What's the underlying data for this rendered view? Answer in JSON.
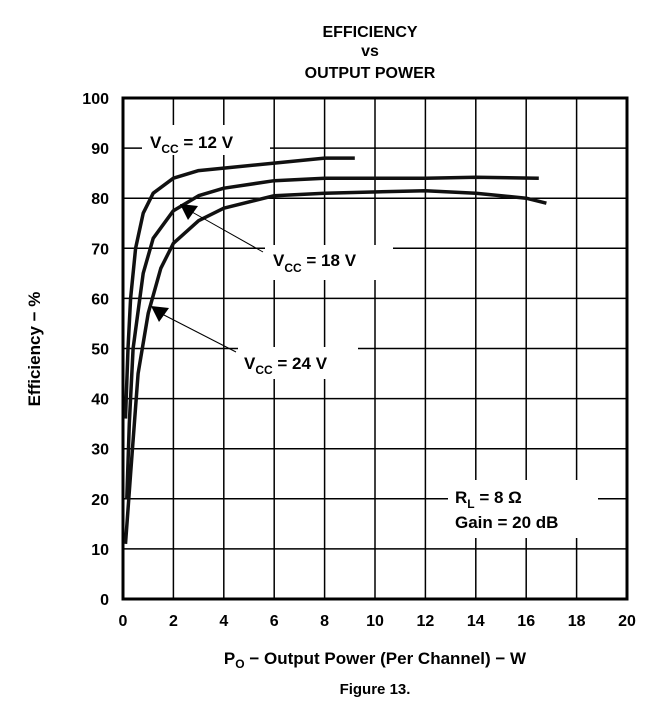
{
  "chart_data": {
    "type": "line",
    "title": [
      "EFFICIENCY",
      "vs",
      "OUTPUT POWER"
    ],
    "xlabel": {
      "main": "P",
      "sub": "O",
      "rest": " − Output Power (Per Channel) − W"
    },
    "ylabel": "Efficiency − %",
    "caption": "Figure 13.",
    "xlim": [
      0,
      20
    ],
    "ylim": [
      0,
      100
    ],
    "xticks": [
      "0",
      "2",
      "4",
      "6",
      "8",
      "10",
      "12",
      "14",
      "16",
      "18",
      "20"
    ],
    "yticks": [
      "0",
      "10",
      "20",
      "30",
      "40",
      "50",
      "60",
      "70",
      "80",
      "90",
      "100"
    ],
    "grid": true,
    "series": [
      {
        "name": "VCC = 12 V",
        "label_main": "V",
        "label_sub": "CC",
        "label_rest": " = 12 V",
        "x": [
          0.1,
          0.2,
          0.3,
          0.5,
          0.8,
          1.2,
          2,
          3,
          4,
          6,
          8,
          9.2
        ],
        "y": [
          36,
          50,
          60,
          70,
          77,
          81,
          84,
          85.5,
          86,
          87,
          88,
          88
        ]
      },
      {
        "name": "VCC = 18 V",
        "label_main": "V",
        "label_sub": "CC",
        "label_rest": "  = 18 V",
        "x": [
          0.15,
          0.25,
          0.4,
          0.8,
          1.2,
          2,
          3,
          4,
          6,
          8,
          12,
          14,
          16.5
        ],
        "y": [
          20,
          35,
          50,
          65,
          72,
          77.5,
          80.5,
          82,
          83.5,
          84,
          84,
          84.2,
          84
        ]
      },
      {
        "name": "VCC = 24 V",
        "label_main": "V",
        "label_sub": "CC",
        "label_rest": " = 24 V",
        "x": [
          0.1,
          0.3,
          0.6,
          1,
          1.5,
          2,
          3,
          4,
          6,
          8,
          12,
          14,
          16,
          16.8
        ],
        "y": [
          11,
          25,
          45,
          57,
          66,
          71,
          75.5,
          78,
          80.5,
          81,
          81.5,
          81,
          80,
          79
        ]
      }
    ],
    "annotations": {
      "rl_main": "R",
      "rl_sub": "L",
      "rl_rest": " = 8 Ω",
      "gain": "Gain = 20 dB"
    }
  }
}
